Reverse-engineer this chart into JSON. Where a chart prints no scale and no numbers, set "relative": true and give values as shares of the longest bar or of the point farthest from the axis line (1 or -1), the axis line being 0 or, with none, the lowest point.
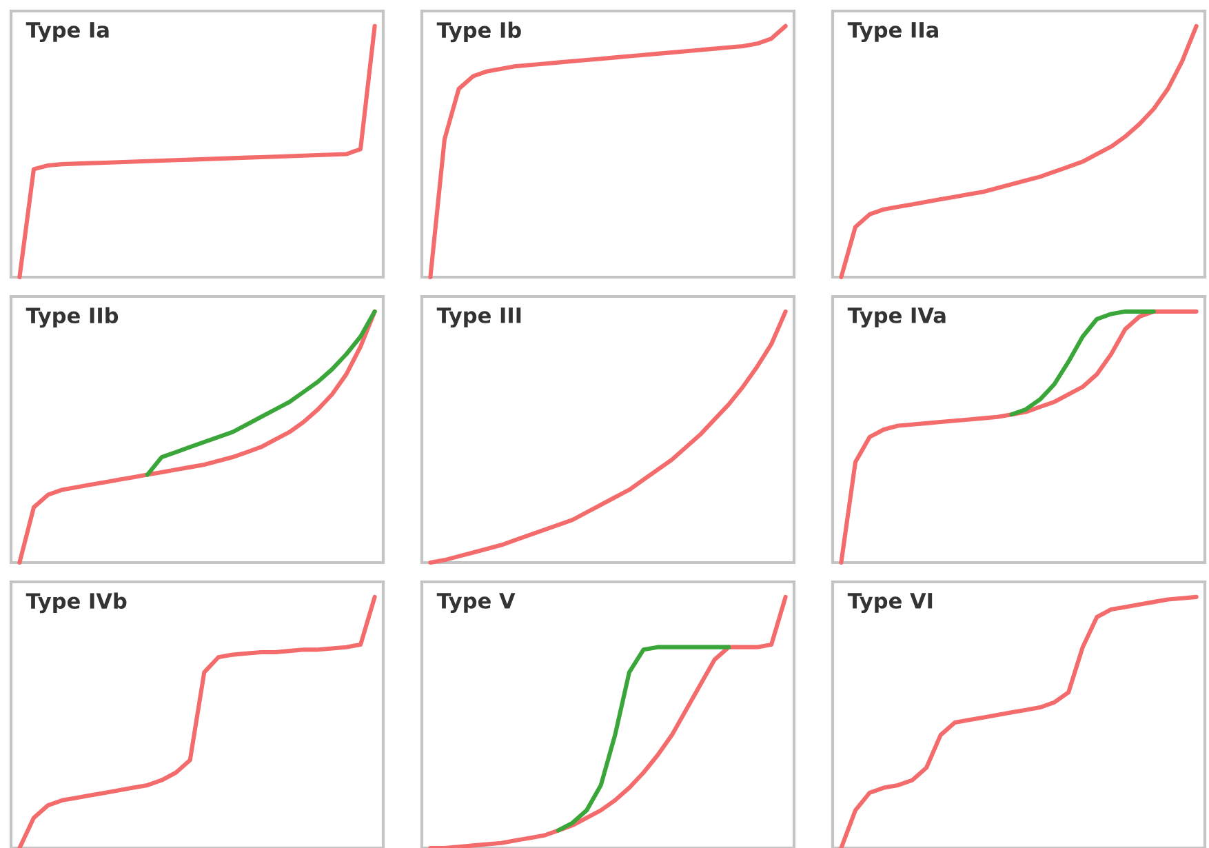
{
  "chart_data": [
    {
      "type": "line",
      "title": "Type Ia",
      "relative": true,
      "categories": [
        null,
        null,
        null,
        null,
        null,
        null,
        null,
        null,
        null,
        null,
        null,
        null,
        null,
        null,
        null,
        null,
        null,
        null,
        null,
        null,
        null,
        null,
        null,
        null,
        null,
        null
      ],
      "series": [
        {
          "color": "#f36b6b",
          "values": [
            0,
            0.43,
            0.445,
            0.45,
            0.452,
            0.454,
            0.456,
            0.458,
            0.46,
            0.462,
            0.464,
            0.466,
            0.468,
            0.47,
            0.472,
            0.474,
            0.476,
            0.478,
            0.48,
            0.482,
            0.484,
            0.486,
            0.488,
            0.49,
            0.51,
            1
          ]
        }
      ]
    },
    {
      "type": "line",
      "title": "Type Ib",
      "relative": true,
      "categories": [
        null,
        null,
        null,
        null,
        null,
        null,
        null,
        null,
        null,
        null,
        null,
        null,
        null,
        null,
        null,
        null,
        null,
        null,
        null,
        null,
        null,
        null,
        null,
        null,
        null,
        null
      ],
      "series": [
        {
          "color": "#f36b6b",
          "values": [
            0,
            0.55,
            0.75,
            0.8,
            0.82,
            0.83,
            0.84,
            0.845,
            0.85,
            0.855,
            0.86,
            0.865,
            0.87,
            0.875,
            0.88,
            0.885,
            0.89,
            0.895,
            0.9,
            0.905,
            0.91,
            0.915,
            0.92,
            0.93,
            0.95,
            1
          ]
        }
      ]
    },
    {
      "type": "line",
      "title": "Type IIa",
      "relative": true,
      "categories": [
        null,
        null,
        null,
        null,
        null,
        null,
        null,
        null,
        null,
        null,
        null,
        null,
        null,
        null,
        null,
        null,
        null,
        null,
        null,
        null,
        null,
        null,
        null,
        null,
        null,
        null
      ],
      "series": [
        {
          "color": "#f36b6b",
          "values": [
            0,
            0.2,
            0.25,
            0.27,
            0.28,
            0.29,
            0.3,
            0.31,
            0.32,
            0.33,
            0.34,
            0.355,
            0.37,
            0.385,
            0.4,
            0.42,
            0.44,
            0.46,
            0.49,
            0.52,
            0.56,
            0.61,
            0.67,
            0.75,
            0.86,
            1
          ]
        }
      ]
    },
    {
      "type": "line",
      "title": "Type IIb",
      "relative": true,
      "categories": [
        null,
        null,
        null,
        null,
        null,
        null,
        null,
        null,
        null,
        null,
        null,
        null,
        null,
        null,
        null,
        null,
        null,
        null,
        null,
        null,
        null,
        null,
        null,
        null,
        null,
        null
      ],
      "series": [
        {
          "color": "#f36b6b",
          "values": [
            0,
            0.22,
            0.27,
            0.29,
            0.3,
            0.31,
            0.32,
            0.33,
            0.34,
            0.35,
            0.36,
            0.37,
            0.38,
            0.39,
            0.405,
            0.42,
            0.44,
            0.46,
            0.49,
            0.52,
            0.56,
            0.61,
            0.67,
            0.75,
            0.86,
            1
          ]
        },
        {
          "color": "#3aa63a",
          "values": [
            null,
            null,
            null,
            null,
            null,
            null,
            null,
            null,
            null,
            0.35,
            0.42,
            0.44,
            0.46,
            0.48,
            0.5,
            0.52,
            0.55,
            0.58,
            0.61,
            0.64,
            0.68,
            0.72,
            0.77,
            0.83,
            0.9,
            1
          ]
        }
      ]
    },
    {
      "type": "line",
      "title": "Type III",
      "relative": true,
      "categories": [
        null,
        null,
        null,
        null,
        null,
        null,
        null,
        null,
        null,
        null,
        null,
        null,
        null,
        null,
        null,
        null,
        null,
        null,
        null,
        null,
        null,
        null,
        null,
        null,
        null,
        null
      ],
      "series": [
        {
          "color": "#f36b6b",
          "values": [
            0,
            0.01,
            0.025,
            0.04,
            0.055,
            0.07,
            0.09,
            0.11,
            0.13,
            0.15,
            0.17,
            0.2,
            0.23,
            0.26,
            0.29,
            0.33,
            0.37,
            0.41,
            0.46,
            0.51,
            0.57,
            0.63,
            0.7,
            0.78,
            0.87,
            1
          ]
        }
      ]
    },
    {
      "type": "line",
      "title": "Type IVa",
      "relative": true,
      "categories": [
        null,
        null,
        null,
        null,
        null,
        null,
        null,
        null,
        null,
        null,
        null,
        null,
        null,
        null,
        null,
        null,
        null,
        null,
        null,
        null,
        null,
        null,
        null,
        null,
        null,
        null
      ],
      "series": [
        {
          "color": "#f36b6b",
          "values": [
            0,
            0.4,
            0.5,
            0.53,
            0.545,
            0.55,
            0.555,
            0.56,
            0.565,
            0.57,
            0.575,
            0.58,
            0.59,
            0.6,
            0.62,
            0.64,
            0.67,
            0.7,
            0.75,
            0.83,
            0.93,
            0.98,
            1,
            1,
            1,
            1
          ]
        },
        {
          "color": "#3aa63a",
          "values": [
            null,
            null,
            null,
            null,
            null,
            null,
            null,
            null,
            null,
            null,
            null,
            null,
            0.59,
            0.61,
            0.65,
            0.71,
            0.8,
            0.9,
            0.97,
            0.99,
            1,
            1,
            1,
            null,
            null,
            null
          ]
        }
      ]
    },
    {
      "type": "line",
      "title": "Type IVb",
      "relative": true,
      "categories": [
        null,
        null,
        null,
        null,
        null,
        null,
        null,
        null,
        null,
        null,
        null,
        null,
        null,
        null,
        null,
        null,
        null,
        null,
        null,
        null,
        null,
        null,
        null,
        null,
        null,
        null
      ],
      "series": [
        {
          "color": "#f36b6b",
          "values": [
            0,
            0.12,
            0.17,
            0.19,
            0.2,
            0.21,
            0.22,
            0.23,
            0.24,
            0.25,
            0.27,
            0.3,
            0.35,
            0.7,
            0.76,
            0.77,
            0.775,
            0.78,
            0.78,
            0.785,
            0.79,
            0.79,
            0.795,
            0.8,
            0.81,
            1
          ]
        }
      ]
    },
    {
      "type": "line",
      "title": "Type V",
      "relative": true,
      "categories": [
        null,
        null,
        null,
        null,
        null,
        null,
        null,
        null,
        null,
        null,
        null,
        null,
        null,
        null,
        null,
        null,
        null,
        null,
        null,
        null,
        null,
        null,
        null,
        null,
        null,
        null
      ],
      "series": [
        {
          "color": "#f36b6b",
          "values": [
            0,
            0,
            0.005,
            0.01,
            0.015,
            0.02,
            0.03,
            0.04,
            0.05,
            0.07,
            0.09,
            0.12,
            0.15,
            0.19,
            0.24,
            0.3,
            0.37,
            0.45,
            0.55,
            0.65,
            0.75,
            0.8,
            0.8,
            0.8,
            0.81,
            1
          ]
        },
        {
          "color": "#3aa63a",
          "values": [
            null,
            null,
            null,
            null,
            null,
            null,
            null,
            null,
            null,
            0.07,
            0.1,
            0.15,
            0.25,
            0.45,
            0.7,
            0.79,
            0.8,
            0.8,
            0.8,
            0.8,
            0.8,
            0.8,
            null,
            null,
            null,
            null
          ]
        }
      ]
    },
    {
      "type": "line",
      "title": "Type VI",
      "relative": true,
      "categories": [
        null,
        null,
        null,
        null,
        null,
        null,
        null,
        null,
        null,
        null,
        null,
        null,
        null,
        null,
        null,
        null,
        null,
        null,
        null,
        null,
        null,
        null,
        null,
        null,
        null,
        null
      ],
      "series": [
        {
          "color": "#f36b6b",
          "values": [
            0,
            0.15,
            0.22,
            0.24,
            0.25,
            0.27,
            0.32,
            0.45,
            0.5,
            0.51,
            0.52,
            0.53,
            0.54,
            0.55,
            0.56,
            0.58,
            0.62,
            0.8,
            0.92,
            0.95,
            0.96,
            0.97,
            0.98,
            0.99,
            0.995,
            1
          ]
        }
      ]
    }
  ]
}
